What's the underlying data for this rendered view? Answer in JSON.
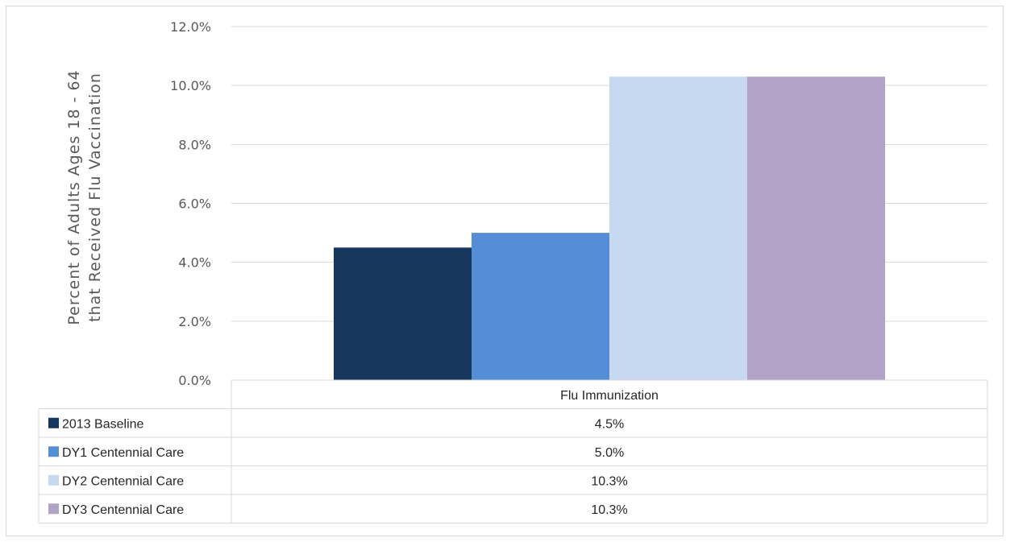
{
  "chart_data": {
    "type": "bar",
    "categories": [
      "Flu Immunization"
    ],
    "series": [
      {
        "name": "2013 Baseline",
        "values": [
          4.5
        ],
        "label": "4.5%",
        "color": "#17375e"
      },
      {
        "name": "DY1 Centennial Care",
        "values": [
          5.0
        ],
        "label": "5.0%",
        "color": "#558ed5"
      },
      {
        "name": "DY2 Centennial Care",
        "values": [
          10.3
        ],
        "label": "10.3%",
        "color": "#c6d9f0"
      },
      {
        "name": "DY3 Centennial Care",
        "values": [
          10.3
        ],
        "label": "10.3%",
        "color": "#b3a2c7"
      }
    ],
    "ylabel_lines": [
      "Percent of Adults Ages 18 - 64",
      "that Received Flu Vaccination"
    ],
    "ylim": [
      0,
      12
    ],
    "yticks": [
      "0.0%",
      "2.0%",
      "4.0%",
      "6.0%",
      "8.0%",
      "10.0%",
      "12.0%"
    ],
    "grid": true,
    "legend": "data-table"
  }
}
